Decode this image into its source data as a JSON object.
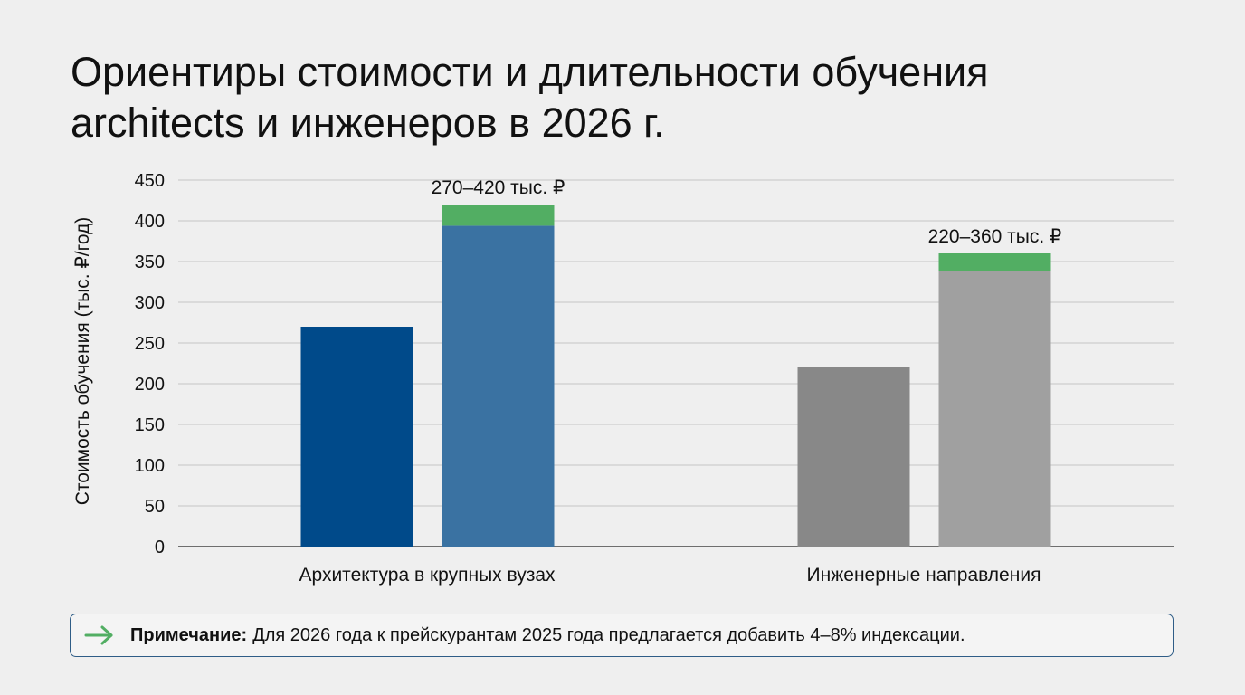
{
  "title": "Ориентиры стоимости и длительности обучения architects и инженеров в 2026 г.",
  "colors": {
    "background": "#efefef",
    "arch_base": "#004a8a",
    "arch_upper": "#3a72a2",
    "eng_base": "#888888",
    "eng_upper": "#a0a0a0",
    "increment": "#52ae63",
    "note_border": "#2f5d87"
  },
  "chart_data": {
    "type": "bar",
    "ylabel": "Стоимость обучения (тыс. ₽/год)",
    "ylim": [
      0,
      450
    ],
    "yticks": [
      0,
      50,
      100,
      150,
      200,
      250,
      300,
      350,
      400,
      450
    ],
    "grid": true,
    "categories": [
      "Архитектура в крупных вузах",
      "Инженерные направления"
    ],
    "groups": [
      {
        "category": "Архитектура в крупных вузах",
        "min": 270,
        "max": 394,
        "max_with_indexation": 420,
        "label": "270–420 тыс. ₽"
      },
      {
        "category": "Инженерные направления",
        "min": 220,
        "max": 338,
        "max_with_indexation": 360,
        "label": "220–360 тыс. ₽"
      }
    ]
  },
  "note": {
    "icon": "arrow-right-icon",
    "label": "Примечание:",
    "text": "Для 2026 года к прейскурантам 2025 года предлагается добавить 4–8% индексации."
  }
}
